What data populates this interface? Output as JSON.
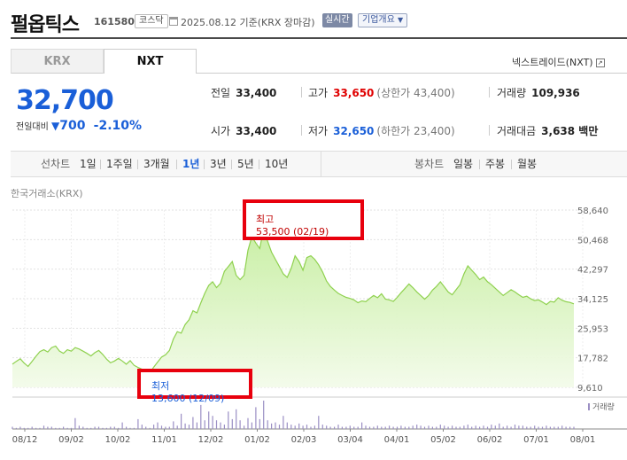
{
  "header": {
    "company": "펄옵틱스",
    "code": "161580",
    "market": "코스닥",
    "date_text": "2025.08.12 기준(KRX 장마감)",
    "realtime": "실시간",
    "company_info": "기업개요"
  },
  "tabs": {
    "krx": "KRX",
    "nxt": "NXT",
    "nxt_link": "넥스트레이드(NXT)"
  },
  "price": {
    "current": "32,700",
    "change_label": "전일대비",
    "change": "700",
    "change_pct": "-2.10%"
  },
  "stats": {
    "prev": {
      "label": "전일",
      "value": "33,400"
    },
    "high": {
      "label": "고가",
      "value": "33,650",
      "sub": "(상한가 43,400)"
    },
    "volume": {
      "label": "거래량",
      "value": "109,936"
    },
    "open": {
      "label": "시가",
      "value": "33,400"
    },
    "low": {
      "label": "저가",
      "value": "32,650",
      "sub": "(하한가 23,400)"
    },
    "amount": {
      "label": "거래대금",
      "value": "3,638 백만"
    }
  },
  "period_bar": {
    "line_label": "선차트",
    "periods": [
      "1일",
      "1주일",
      "3개월",
      "1년",
      "3년",
      "5년",
      "10년"
    ],
    "active_period": "1년",
    "candle_label": "봉차트",
    "candles": [
      "일봉",
      "주봉",
      "월봉"
    ]
  },
  "chart_title": "한국거래소(KRX)",
  "annotations": {
    "high": {
      "label": "최고",
      "value": "53,500 (02/19)"
    },
    "low": {
      "label": "최저",
      "value": "13,600 (12/09)"
    }
  },
  "colors": {
    "up": "#e00000",
    "down": "#1a5fd8",
    "line": "#8fd14f",
    "volume": "#9b8fc4"
  },
  "chart_data": {
    "type": "area",
    "xlabel": "",
    "ylabel": "",
    "y_ticks": [
      "58,640",
      "50,468",
      "42,297",
      "34,125",
      "25,953",
      "17,782",
      "9,610"
    ],
    "ylim": [
      9610,
      58640
    ],
    "x_ticks": [
      "08/12",
      "09/02",
      "10/02",
      "11/01",
      "12/02",
      "01/02",
      "02/03",
      "03/04",
      "04/01",
      "05/02",
      "06/02",
      "07/01",
      "08/01"
    ],
    "volume_label": "거래량",
    "price": [
      16000,
      16800,
      17500,
      16300,
      15400,
      16800,
      18200,
      19500,
      20000,
      19400,
      20600,
      21000,
      19600,
      19000,
      20000,
      19600,
      20600,
      20200,
      19600,
      19000,
      18300,
      19200,
      19800,
      18700,
      17400,
      16400,
      16900,
      17600,
      16900,
      16000,
      17000,
      15700,
      15100,
      14600,
      14200,
      13600,
      15200,
      16600,
      18000,
      18600,
      19800,
      23000,
      25000,
      24600,
      27000,
      28300,
      30800,
      30200,
      33000,
      35600,
      37800,
      38800,
      37200,
      38400,
      41700,
      43000,
      44400,
      40600,
      39400,
      40600,
      47500,
      51300,
      49500,
      48000,
      53500,
      50000,
      47000,
      45000,
      43000,
      41000,
      40000,
      42500,
      46000,
      44400,
      42000,
      45500,
      46000,
      45000,
      43500,
      41500,
      39000,
      37500,
      36500,
      35600,
      35000,
      34500,
      34200,
      33800,
      33000,
      33500,
      33300,
      34200,
      35000,
      34400,
      35500,
      34000,
      33800,
      33400,
      34500,
      35800,
      37000,
      38200,
      37200,
      36000,
      35000,
      34000,
      35000,
      36500,
      37500,
      38800,
      37400,
      36000,
      35200,
      36600,
      38000,
      41000,
      43200,
      42000,
      40800,
      39400,
      40100,
      38800,
      38000,
      37000,
      36000,
      35000,
      35800,
      36600,
      36000,
      35200,
      34500,
      34800,
      34100,
      33600,
      33800,
      33200,
      32500,
      33400,
      33200,
      34400,
      33700,
      33300,
      33100,
      32700
    ],
    "volume": [
      2,
      1,
      2,
      1,
      1,
      2,
      1,
      1,
      3,
      2,
      2,
      1,
      1,
      2,
      1,
      1,
      10,
      3,
      2,
      1,
      1,
      2,
      2,
      1,
      1,
      2,
      2,
      1,
      6,
      2,
      1,
      1,
      9,
      4,
      2,
      1,
      4,
      6,
      3,
      2,
      2,
      7,
      3,
      14,
      5,
      4,
      11,
      6,
      22,
      8,
      16,
      12,
      8,
      6,
      4,
      16,
      9,
      18,
      8,
      3,
      10,
      6,
      20,
      9,
      26,
      8,
      5,
      6,
      4,
      12,
      6,
      4,
      3,
      5,
      3,
      4,
      2,
      3,
      12,
      4,
      3,
      2,
      2,
      4,
      2,
      2,
      3,
      2,
      2,
      6,
      3,
      2,
      2,
      3,
      2,
      2,
      3,
      2,
      2,
      3,
      2,
      2,
      3,
      4,
      3,
      2,
      3,
      2,
      2,
      4,
      3,
      2,
      3,
      2,
      2,
      3,
      4,
      2,
      3,
      2,
      3,
      2,
      4,
      3,
      5,
      2,
      3,
      2,
      4,
      3,
      3,
      2,
      2,
      3,
      2,
      2,
      3,
      2,
      2,
      2,
      3,
      2,
      2,
      2
    ]
  }
}
